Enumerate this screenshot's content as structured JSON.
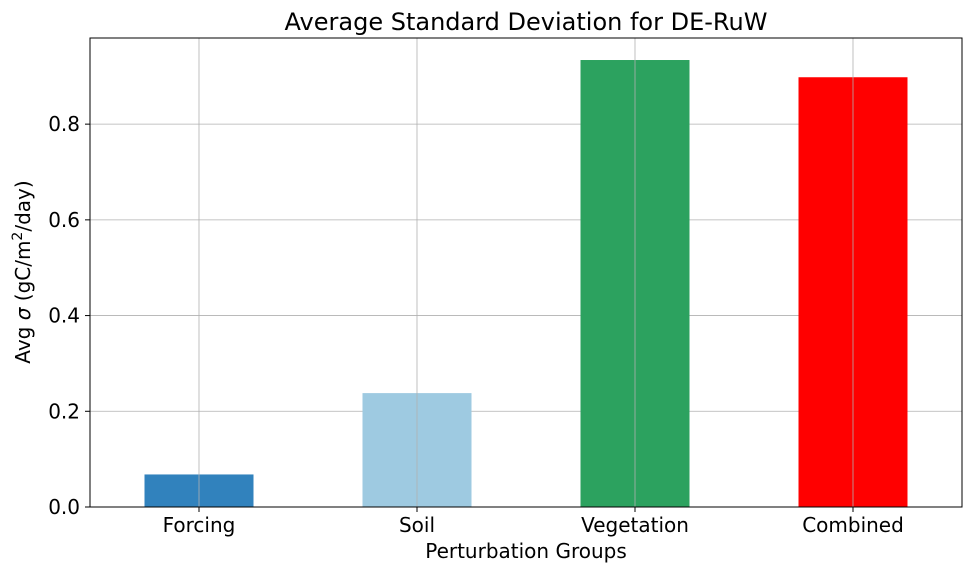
{
  "chart_data": {
    "type": "bar",
    "title": "Average Standard Deviation for DE-RuW",
    "xlabel": "Perturbation Groups",
    "ylabel": {
      "prefix": "Avg ",
      "symbol": "σ",
      "unit_start": " (gC/m",
      "superscript": "2",
      "unit_end": "/day)"
    },
    "categories": [
      "Forcing",
      "Soil",
      "Vegetation",
      "Combined"
    ],
    "values": [
      0.068,
      0.238,
      0.934,
      0.898
    ],
    "colors": [
      "#3182bd",
      "#9ecae1",
      "#2ca25f",
      "#ff0000"
    ],
    "ylim": [
      0,
      0.98
    ],
    "yticks": [
      0.0,
      0.2,
      0.4,
      0.6,
      0.8
    ],
    "ytick_labels": [
      "0.0",
      "0.2",
      "0.4",
      "0.6",
      "0.8"
    ],
    "grid": true,
    "legend": false
  }
}
